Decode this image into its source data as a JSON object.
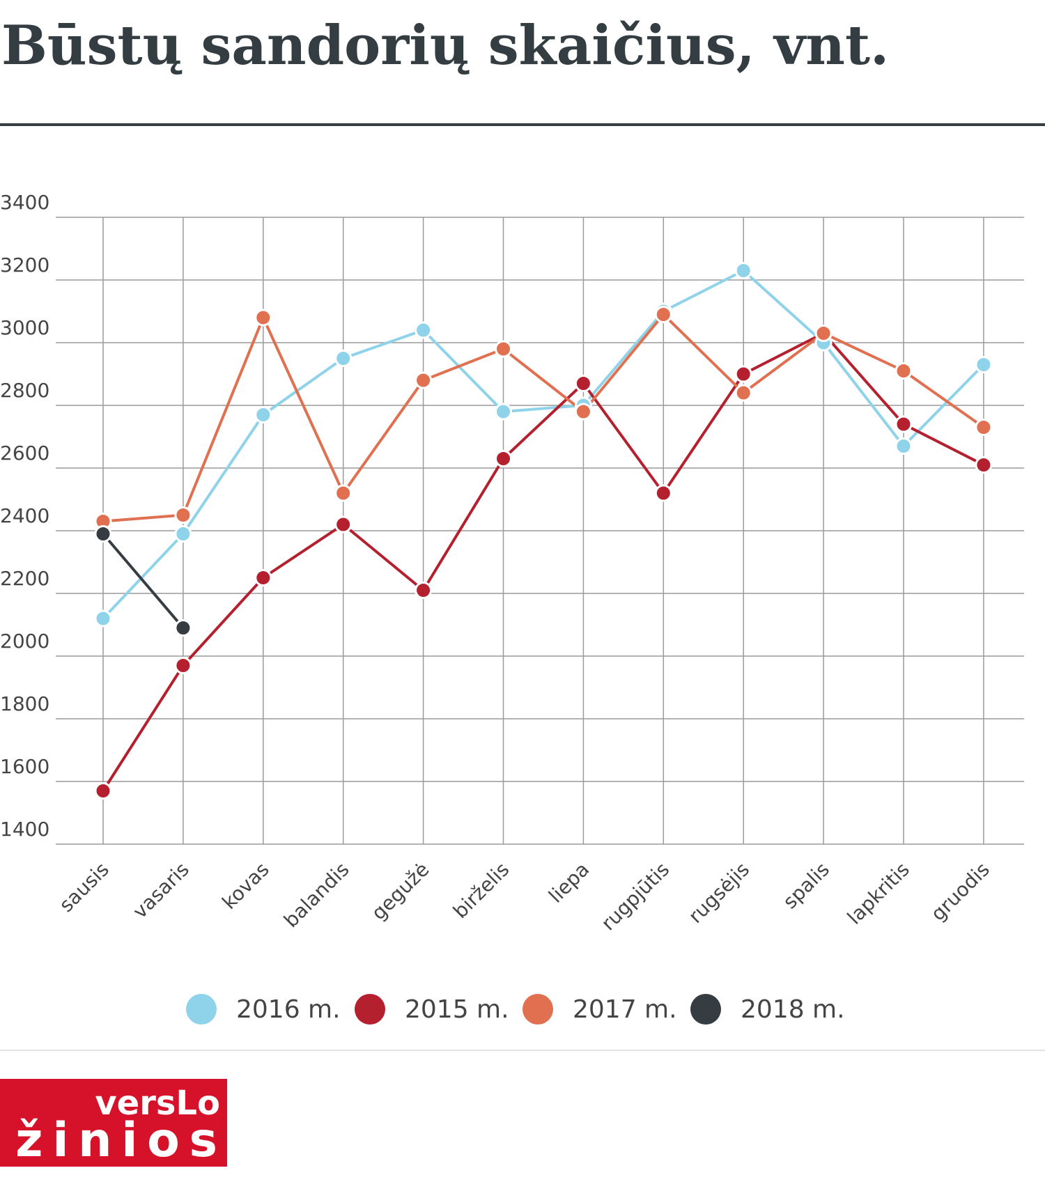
{
  "chart_data": {
    "type": "line",
    "title": "Būstų sandorių skaičius, vnt.",
    "categories": [
      "sausis",
      "vasaris",
      "kovas",
      "balandis",
      "gegužė",
      "birželis",
      "liepa",
      "rugpjūtis",
      "rugsėjis",
      "spalis",
      "lapkritis",
      "gruodis"
    ],
    "series": [
      {
        "name": "2016 m.",
        "color": "#8fd3ea",
        "values": [
          2120,
          2390,
          2770,
          2950,
          3040,
          2780,
          2800,
          3100,
          3230,
          3000,
          2670,
          2930
        ]
      },
      {
        "name": "2015 m.",
        "color": "#b5202e",
        "values": [
          1570,
          1970,
          2250,
          2420,
          2210,
          2630,
          2870,
          2520,
          2900,
          3030,
          2740,
          2610
        ]
      },
      {
        "name": "2017 m.",
        "color": "#e07050",
        "values": [
          2430,
          2450,
          3080,
          2520,
          2880,
          2980,
          2780,
          3090,
          2840,
          3030,
          2910,
          2730
        ]
      },
      {
        "name": "2018 m.",
        "color": "#363d42",
        "values": [
          2390,
          2090,
          null,
          null,
          null,
          null,
          null,
          null,
          null,
          null,
          null,
          null
        ]
      }
    ],
    "ylim": [
      1400,
      3400
    ],
    "yticks": [
      1400,
      1600,
      1800,
      2000,
      2200,
      2400,
      2600,
      2800,
      3000,
      3200,
      3400
    ],
    "grid": true,
    "legend": "bottom"
  },
  "logo": {
    "line1": "versLo",
    "line2": "žinios"
  }
}
